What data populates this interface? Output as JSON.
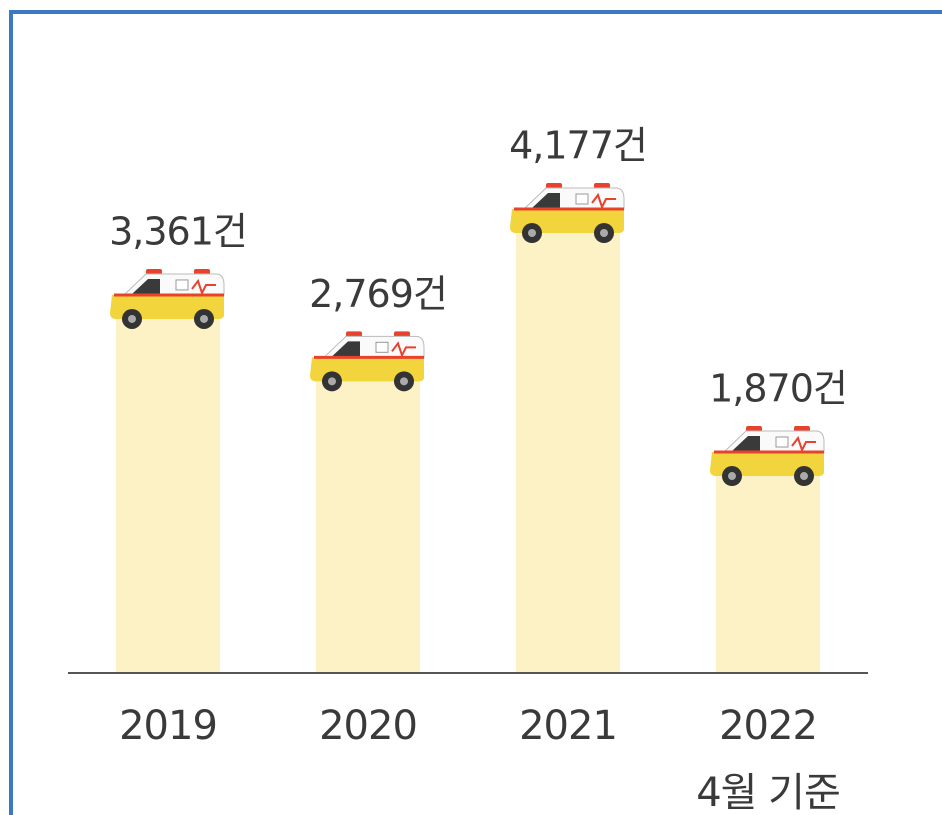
{
  "chart_data": {
    "type": "bar",
    "categories": [
      "2019",
      "2020",
      "2021",
      "2022"
    ],
    "values": [
      3361,
      2769,
      4177,
      1870
    ],
    "value_labels": [
      "3,361건",
      "2,769건",
      "4,177건",
      "1,870건"
    ],
    "color": "#fdf2c6",
    "annotation": "4월 기준"
  }
}
